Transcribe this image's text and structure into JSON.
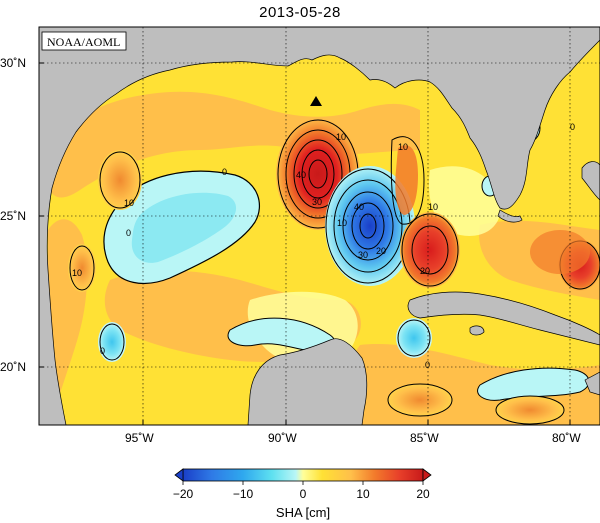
{
  "title": "2013-05-28",
  "credit": "NOAA/AOML",
  "colors": {
    "land": "#bebebe",
    "sea_zero": "#ffff9b",
    "sea_low_pos": "#ffe135",
    "sea_mid_pos": "#ffbf4a",
    "sea_high_pos": "#f27a2b",
    "sea_very_high": "#e02020",
    "sea_low_neg": "#b9f6f6",
    "sea_mid_neg": "#5ee0f0",
    "sea_high_neg": "#2fa8ee",
    "sea_very_neg": "#1a4fd8"
  },
  "axes": {
    "x_ticks": [
      {
        "lon": -95,
        "label": "95˚W"
      },
      {
        "lon": -90,
        "label": "90˚W"
      },
      {
        "lon": -85,
        "label": "85˚W"
      },
      {
        "lon": -80,
        "label": "80˚W"
      }
    ],
    "y_ticks": [
      {
        "lat": 20,
        "label": "20˚N"
      },
      {
        "lat": 25,
        "label": "25˚N"
      },
      {
        "lat": 30,
        "label": "30˚N"
      }
    ]
  },
  "colorbar": {
    "title": "SHA [cm]",
    "tick_labels": [
      "−20",
      "−10",
      "0",
      "10",
      "20"
    ],
    "range": [
      -20,
      20
    ]
  },
  "contour_labels": {
    "loop_current_warm_40": "40",
    "loop_current_warm_30": "30",
    "loop_current_warm_10": "10",
    "cold_eddy_40": "40",
    "cold_eddy_30": "30",
    "cold_eddy_20": "20",
    "cold_eddy_10": "10",
    "west_zero_1": "0",
    "west_zero_2": "0",
    "west_10_left": "10",
    "west_10_far": "10",
    "east_eddy_20": "20",
    "east_eddy_10a": "10",
    "east_eddy_10b": "10",
    "yucatan_zero": "0",
    "south_zero": "0",
    "north_zero": "0"
  },
  "marker": "triangle"
}
